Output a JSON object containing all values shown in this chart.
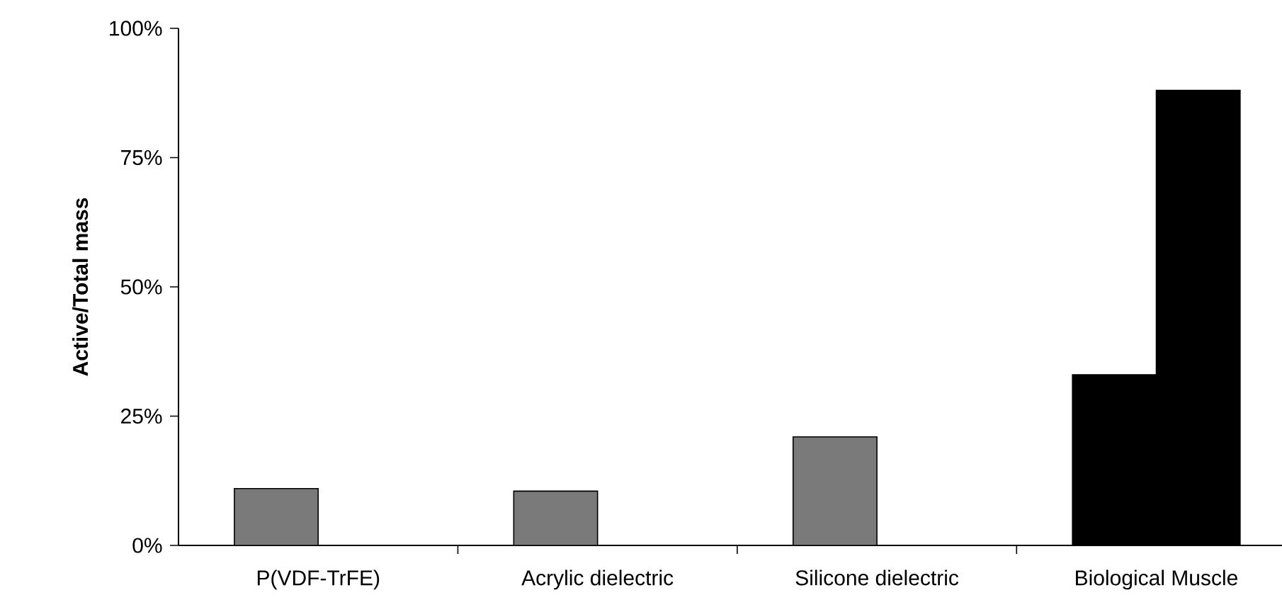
{
  "chart_data": {
    "type": "bar",
    "ylabel": "Active/Total mass",
    "categories": [
      "P(VDF-TrFE)",
      "Acrylic dielectric",
      "Silicone dielectric",
      "Biological Muscle"
    ],
    "series": [
      {
        "colors": [
          "#7a7a7a",
          "#7a7a7a",
          "#7a7a7a",
          "#000000"
        ],
        "values": [
          11,
          10.5,
          21,
          33
        ]
      },
      {
        "color": "#000000",
        "values": [
          null,
          null,
          null,
          88
        ]
      }
    ],
    "ylim": [
      0,
      100
    ],
    "yticks": [
      {
        "value": 0,
        "label": "0%"
      },
      {
        "value": 25,
        "label": "25%"
      },
      {
        "value": 50,
        "label": "50%"
      },
      {
        "value": 75,
        "label": "75%"
      },
      {
        "value": 100,
        "label": "100%"
      }
    ]
  }
}
